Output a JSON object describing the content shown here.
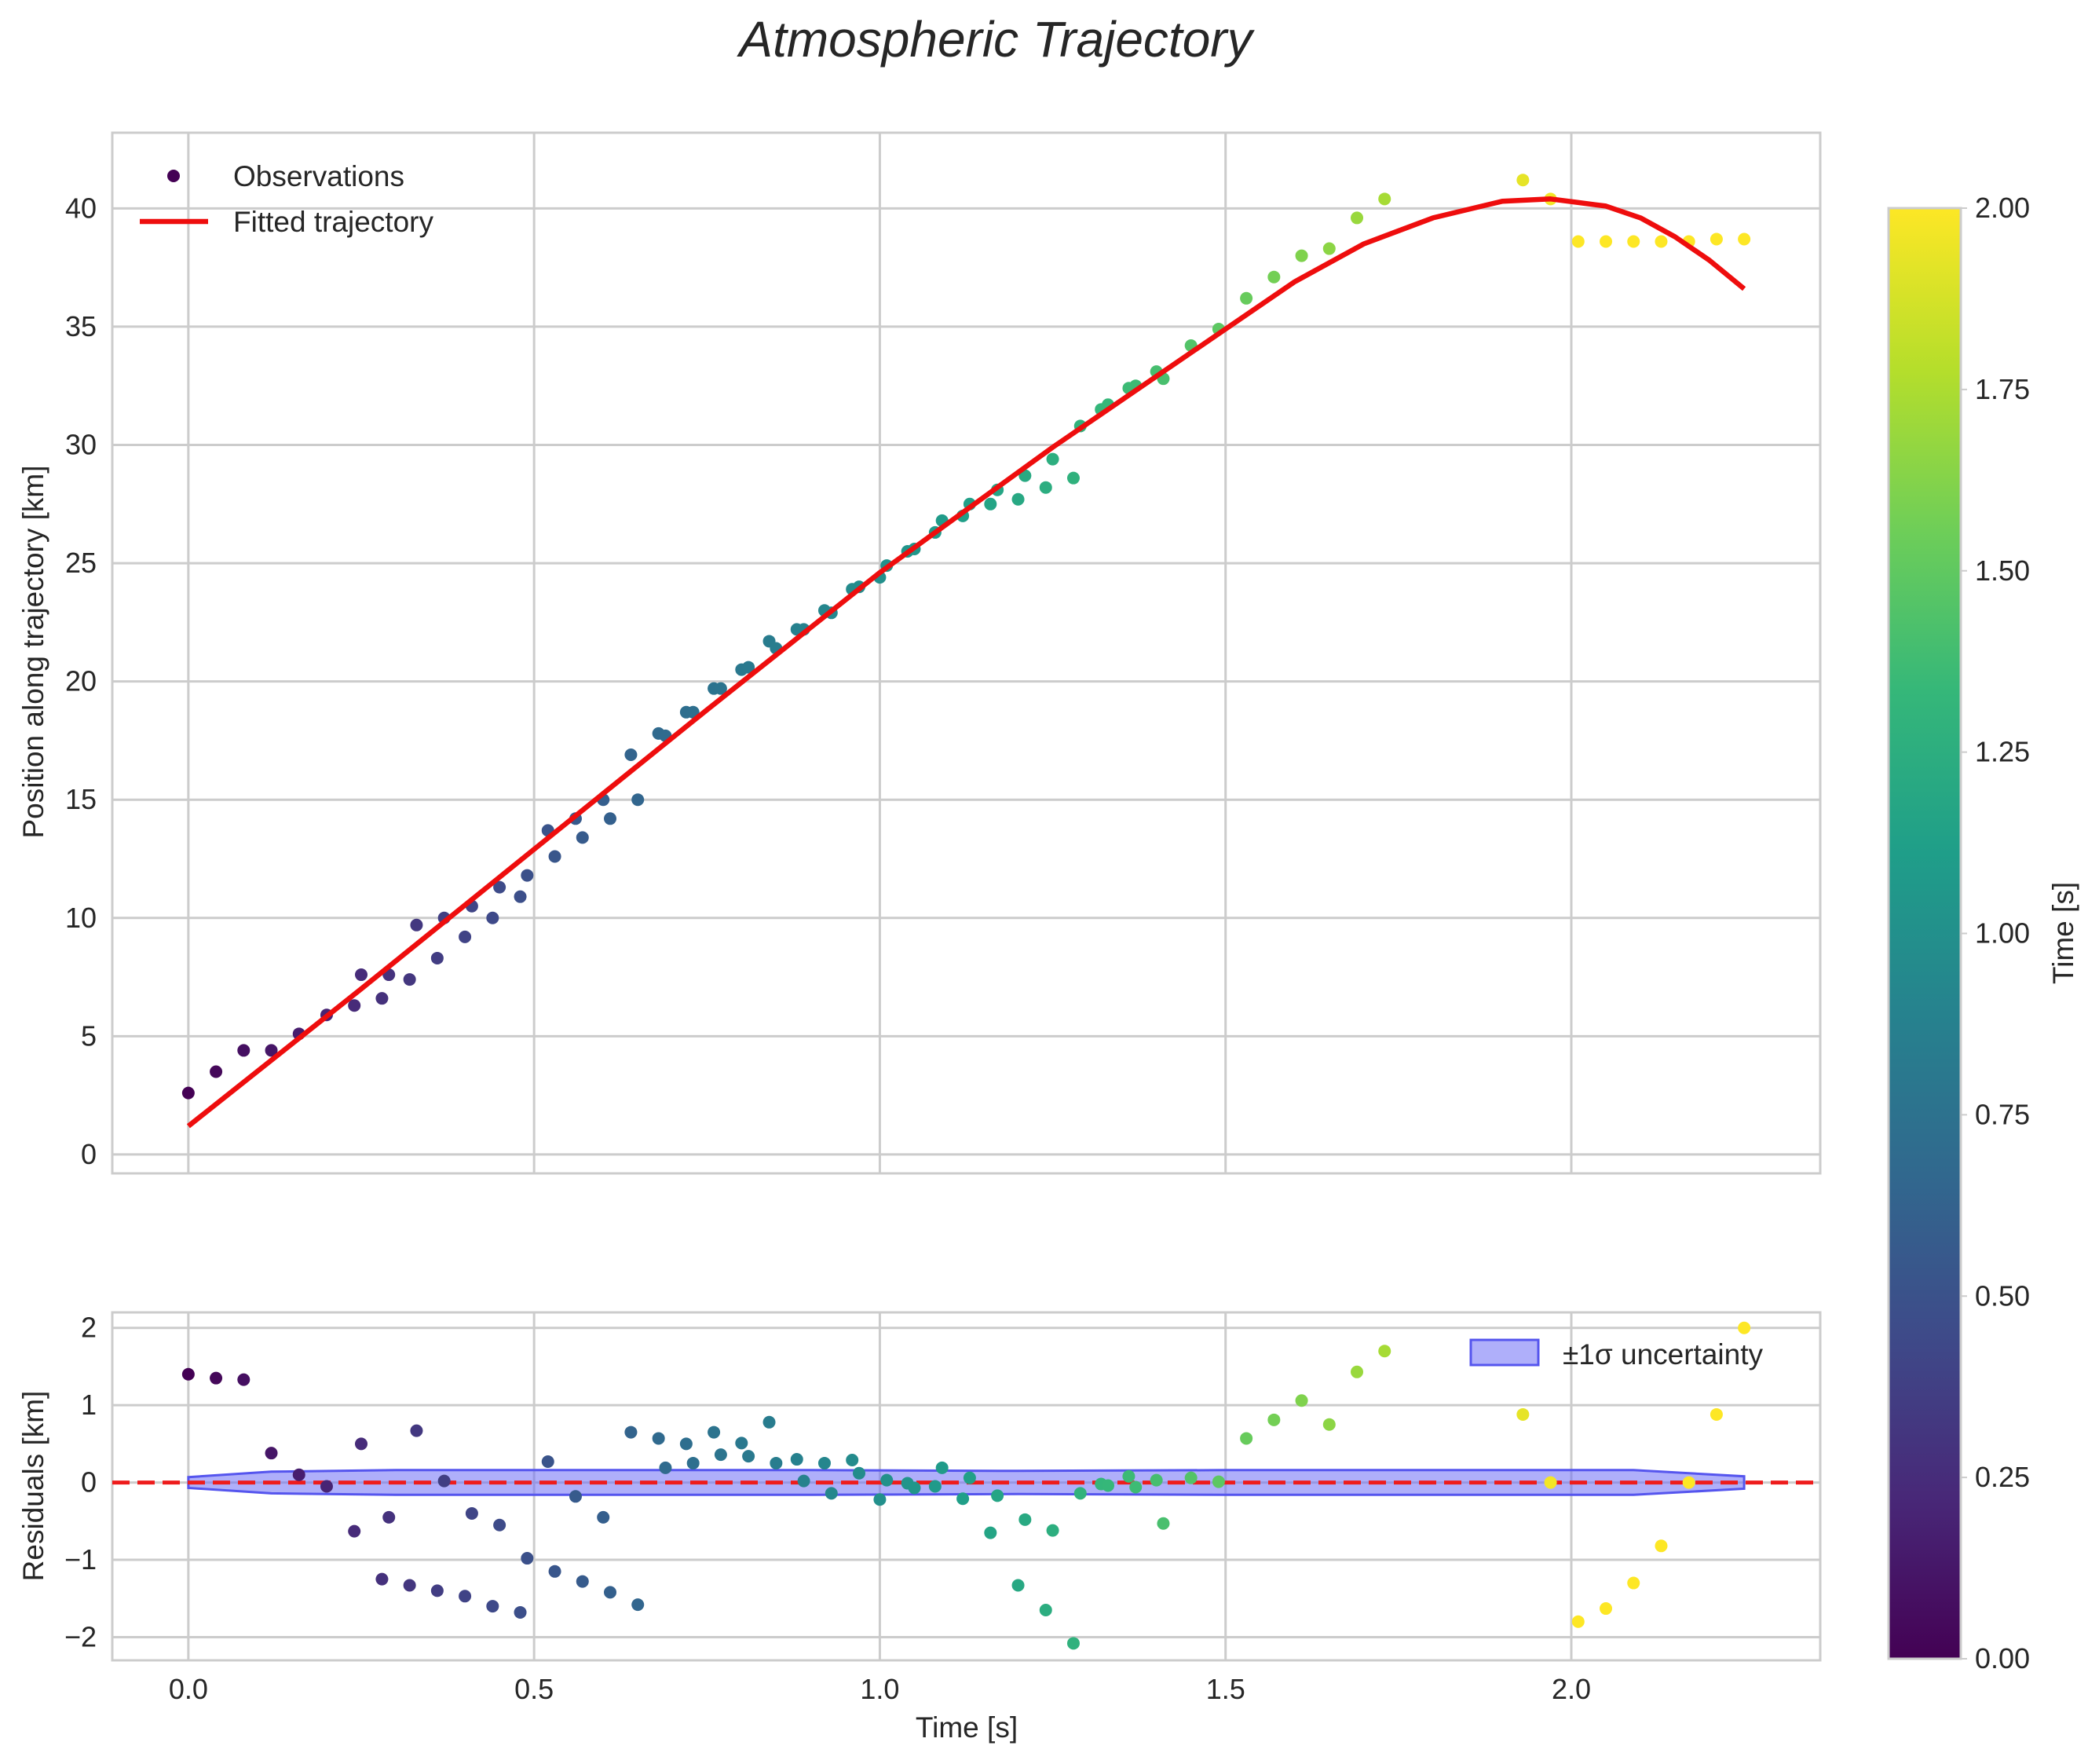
{
  "chart_data": {
    "title": "Atmospheric Trajectory",
    "colormap": "viridis",
    "colormap_stops": [
      "#440154",
      "#482878",
      "#3e4a89",
      "#31688e",
      "#26828e",
      "#1f9e89",
      "#35b779",
      "#6ece58",
      "#b5de2b",
      "#fde725"
    ],
    "x": {
      "label": "Time [s]",
      "lim": [
        -0.11,
        2.36
      ],
      "ticks": [
        0.0,
        0.5,
        1.0,
        1.5,
        2.0
      ],
      "tick_labels": [
        "0.0",
        "0.5",
        "1.0",
        "1.5",
        "2.0"
      ]
    },
    "main_panel": {
      "type": "scatter",
      "ylabel": "Position along trajectory [km]",
      "ylim": [
        -0.8,
        43.2
      ],
      "yticks": [
        0,
        5,
        10,
        15,
        20,
        25,
        30,
        35,
        40
      ],
      "ytick_labels": [
        "0",
        "5",
        "10",
        "15",
        "20",
        "25",
        "30",
        "35",
        "40"
      ],
      "legend": [
        "Observations",
        "Fitted trajectory"
      ],
      "observations": {
        "name": "Observations",
        "t": [
          0.0,
          0.04,
          0.08,
          0.12,
          0.16,
          0.2,
          0.24,
          0.25,
          0.28,
          0.29,
          0.32,
          0.33,
          0.36,
          0.37,
          0.4,
          0.41,
          0.44,
          0.45,
          0.48,
          0.49,
          0.52,
          0.53,
          0.56,
          0.57,
          0.6,
          0.61,
          0.64,
          0.65,
          0.68,
          0.69,
          0.72,
          0.73,
          0.76,
          0.77,
          0.8,
          0.81,
          0.84,
          0.85,
          0.88,
          0.89,
          0.92,
          0.93,
          0.96,
          0.97,
          1.0,
          1.01,
          1.04,
          1.05,
          1.08,
          1.09,
          1.12,
          1.13,
          1.16,
          1.17,
          1.2,
          1.21,
          1.24,
          1.25,
          1.28,
          1.29,
          1.32,
          1.33,
          1.36,
          1.37,
          1.4,
          1.41,
          1.45,
          1.49,
          1.53,
          1.57,
          1.61,
          1.65,
          1.69,
          1.73,
          1.93,
          1.97,
          2.01,
          2.05,
          2.09,
          2.13,
          2.17,
          2.21,
          2.25
        ],
        "y": [
          2.6,
          3.5,
          4.4,
          4.4,
          5.1,
          5.9,
          6.3,
          7.6,
          6.6,
          7.6,
          7.4,
          9.7,
          8.3,
          10.0,
          9.2,
          10.5,
          10.0,
          11.3,
          10.9,
          11.8,
          13.7,
          12.6,
          14.2,
          13.4,
          15.0,
          14.2,
          16.9,
          15.0,
          17.8,
          17.7,
          18.7,
          18.7,
          19.7,
          19.7,
          20.5,
          20.6,
          21.7,
          21.4,
          22.2,
          22.2,
          23.0,
          22.9,
          23.9,
          24.0,
          24.4,
          24.9,
          25.5,
          25.6,
          26.3,
          26.8,
          27.0,
          27.5,
          27.5,
          28.1,
          27.7,
          28.7,
          28.2,
          29.4,
          28.6,
          30.8,
          31.5,
          31.7,
          32.4,
          32.5,
          33.1,
          32.8,
          34.2,
          34.9,
          36.2,
          37.1,
          38.0,
          38.3,
          39.6,
          40.4,
          41.2,
          40.4,
          38.6,
          38.6,
          38.6,
          38.6,
          38.6,
          38.7,
          38.7
        ]
      },
      "fit": {
        "name": "Fitted trajectory",
        "t": [
          0.0,
          0.25,
          0.5,
          0.75,
          1.0,
          1.25,
          1.5,
          1.6,
          1.7,
          1.8,
          1.9,
          1.97,
          2.05,
          2.1,
          2.15,
          2.2,
          2.25
        ],
        "y": [
          1.2,
          7.0,
          12.9,
          18.8,
          24.6,
          29.9,
          34.9,
          36.9,
          38.5,
          39.6,
          40.3,
          40.4,
          40.1,
          39.6,
          38.8,
          37.8,
          36.6
        ]
      }
    },
    "residual_panel": {
      "type": "scatter",
      "ylabel": "Residuals [km]",
      "ylim": [
        -2.3,
        2.2
      ],
      "yticks": [
        -2,
        -1,
        0,
        1,
        2
      ],
      "ytick_labels": [
        "−2",
        "−1",
        "0",
        "1",
        "2"
      ],
      "zero_line": 0,
      "legend": [
        "±1σ uncertainty"
      ],
      "band": {
        "name": "±1σ uncertainty",
        "t": [
          0.0,
          0.12,
          0.3,
          0.6,
          0.9,
          1.2,
          1.5,
          1.8,
          2.09,
          2.25
        ],
        "half_width": [
          0.07,
          0.14,
          0.16,
          0.16,
          0.16,
          0.15,
          0.16,
          0.16,
          0.16,
          0.08
        ]
      },
      "residuals": {
        "t": [
          0.0,
          0.04,
          0.08,
          0.12,
          0.16,
          0.2,
          0.24,
          0.25,
          0.28,
          0.29,
          0.32,
          0.33,
          0.36,
          0.37,
          0.4,
          0.41,
          0.44,
          0.45,
          0.48,
          0.49,
          0.52,
          0.53,
          0.56,
          0.57,
          0.6,
          0.61,
          0.64,
          0.65,
          0.68,
          0.69,
          0.72,
          0.73,
          0.76,
          0.77,
          0.8,
          0.81,
          0.84,
          0.85,
          0.88,
          0.89,
          0.92,
          0.93,
          0.96,
          0.97,
          1.0,
          1.01,
          1.04,
          1.05,
          1.08,
          1.09,
          1.12,
          1.13,
          1.16,
          1.17,
          1.2,
          1.21,
          1.24,
          1.25,
          1.28,
          1.29,
          1.32,
          1.33,
          1.36,
          1.37,
          1.4,
          1.41,
          1.45,
          1.49,
          1.53,
          1.57,
          1.61,
          1.65,
          1.69,
          1.73,
          1.93,
          1.97,
          2.01,
          2.05,
          2.09,
          2.13,
          2.17,
          2.21,
          2.25
        ],
        "r": [
          1.4,
          1.35,
          1.33,
          0.38,
          0.1,
          -0.05,
          -0.63,
          0.5,
          -1.25,
          -0.45,
          -1.33,
          0.67,
          -1.4,
          0.02,
          -1.47,
          -0.4,
          -1.6,
          -0.55,
          -1.68,
          -0.98,
          0.27,
          -1.15,
          -0.18,
          -1.28,
          -0.45,
          -1.42,
          0.65,
          -1.58,
          0.57,
          0.19,
          0.5,
          0.25,
          0.65,
          0.36,
          0.51,
          0.34,
          0.78,
          0.25,
          0.3,
          0.02,
          0.25,
          -0.14,
          0.29,
          0.12,
          -0.22,
          0.03,
          -0.01,
          -0.07,
          -0.05,
          0.19,
          -0.21,
          0.06,
          -0.65,
          -0.17,
          -1.33,
          -0.48,
          -1.65,
          -0.62,
          -2.08,
          -0.14,
          -0.02,
          -0.04,
          0.08,
          -0.06,
          0.03,
          -0.53,
          0.06,
          0.01,
          0.57,
          0.81,
          1.06,
          0.75,
          1.43,
          1.7,
          0.88,
          0.0,
          -1.8,
          -1.63,
          -1.3,
          -0.82,
          0.0,
          0.88,
          2.0
        ]
      }
    },
    "colorbar": {
      "label": "Time [s]",
      "range": [
        0.0,
        2.0
      ],
      "ticks": [
        0.0,
        0.25,
        0.5,
        0.75,
        1.0,
        1.25,
        1.5,
        1.75,
        2.0
      ],
      "tick_labels": [
        "0.00",
        "0.25",
        "0.50",
        "0.75",
        "1.00",
        "1.25",
        "1.50",
        "1.75",
        "2.00"
      ]
    },
    "colors": {
      "fit_line": "#ee0d0d",
      "zero_line": "#ee1c1c",
      "band_fill": "#6e6ef5",
      "band_edge": "#5555ee",
      "grid": "#cccccc",
      "text": "#262626"
    }
  }
}
